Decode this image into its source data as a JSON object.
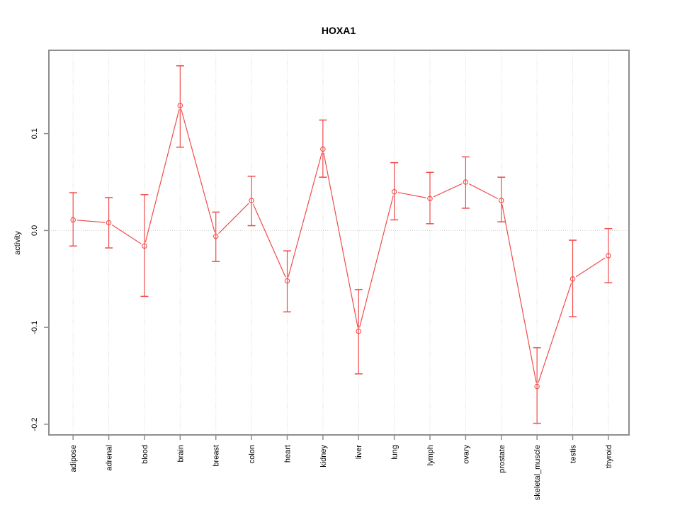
{
  "chart_data": {
    "type": "line",
    "title": "HOXA1",
    "ylabel": "activity",
    "xlabel": "",
    "categories": [
      "adipose",
      "adrenal",
      "blood",
      "brain",
      "breast",
      "colon",
      "heart",
      "kidney",
      "liver",
      "lung",
      "lymph",
      "ovary",
      "prostate",
      "skeletal_muscle",
      "testis",
      "thyroid"
    ],
    "series": [
      {
        "name": "HOXA1 activity",
        "values": [
          0.011,
          0.008,
          -0.016,
          0.129,
          -0.006,
          0.031,
          -0.052,
          0.084,
          -0.104,
          0.04,
          0.033,
          0.05,
          0.031,
          -0.161,
          -0.05,
          -0.026
        ],
        "upper": [
          0.039,
          0.034,
          0.037,
          0.17,
          0.019,
          0.056,
          -0.021,
          0.114,
          -0.061,
          0.07,
          0.06,
          0.076,
          0.055,
          -0.121,
          -0.01,
          0.002
        ],
        "lower": [
          -0.016,
          -0.018,
          -0.068,
          0.086,
          -0.032,
          0.005,
          -0.084,
          0.055,
          -0.148,
          0.011,
          0.007,
          0.023,
          0.009,
          -0.199,
          -0.089,
          -0.054
        ]
      }
    ],
    "error_bars": true,
    "marker": "open-circle",
    "yticks": [
      0.1,
      0.0,
      -0.1,
      -0.2
    ],
    "ytick_labels": [
      "0.1",
      "0.0",
      "-0.1",
      "-0.2"
    ],
    "ylim": [
      -0.211,
      0.186
    ],
    "legend_position": "none",
    "grid": {
      "vertical_dotted_per_category": true,
      "horizontal_zero_line_dotted": true
    }
  },
  "colors": {
    "line": "#f04c4c",
    "axis": "#8e8e8e",
    "grid": "#d6d6d6",
    "zero_line": "#cfcfcf",
    "text": "#000000",
    "background": "#ffffff"
  }
}
